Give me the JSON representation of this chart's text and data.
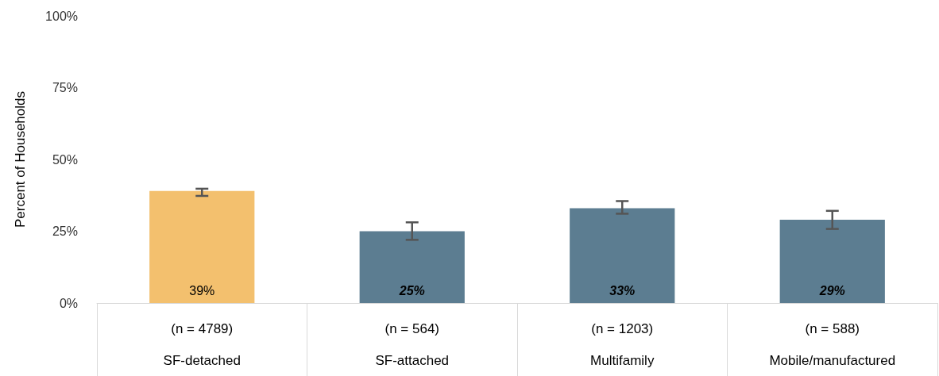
{
  "chart_data": {
    "type": "bar",
    "ylabel": "Percent of Households",
    "categories": [
      "(n = 4789)\nSF-detached",
      "(n = 564)\nSF-attached",
      "(n = 1203)\nMultifamily",
      "(n = 588)\nMobile/manufactured"
    ],
    "values": [
      39,
      25,
      33,
      29
    ],
    "colors": [
      "#f3c06e",
      "#5c7d91",
      "#5c7d91",
      "#5c7d91"
    ],
    "errors": [
      [
        37.3,
        39.8
      ],
      [
        22.0,
        28.1
      ],
      [
        31.1,
        35.5
      ],
      [
        25.8,
        32.1
      ]
    ],
    "ylim": [
      0,
      100
    ],
    "yticks": [
      {
        "value": 0,
        "label": "0%"
      },
      {
        "value": 25,
        "label": "25%"
      },
      {
        "value": 50,
        "label": "50%"
      },
      {
        "value": 75,
        "label": "75%"
      },
      {
        "value": 100,
        "label": "100%"
      }
    ],
    "value_labels": [
      "39%",
      "25%",
      "33%",
      "29%"
    ],
    "grid": false
  }
}
